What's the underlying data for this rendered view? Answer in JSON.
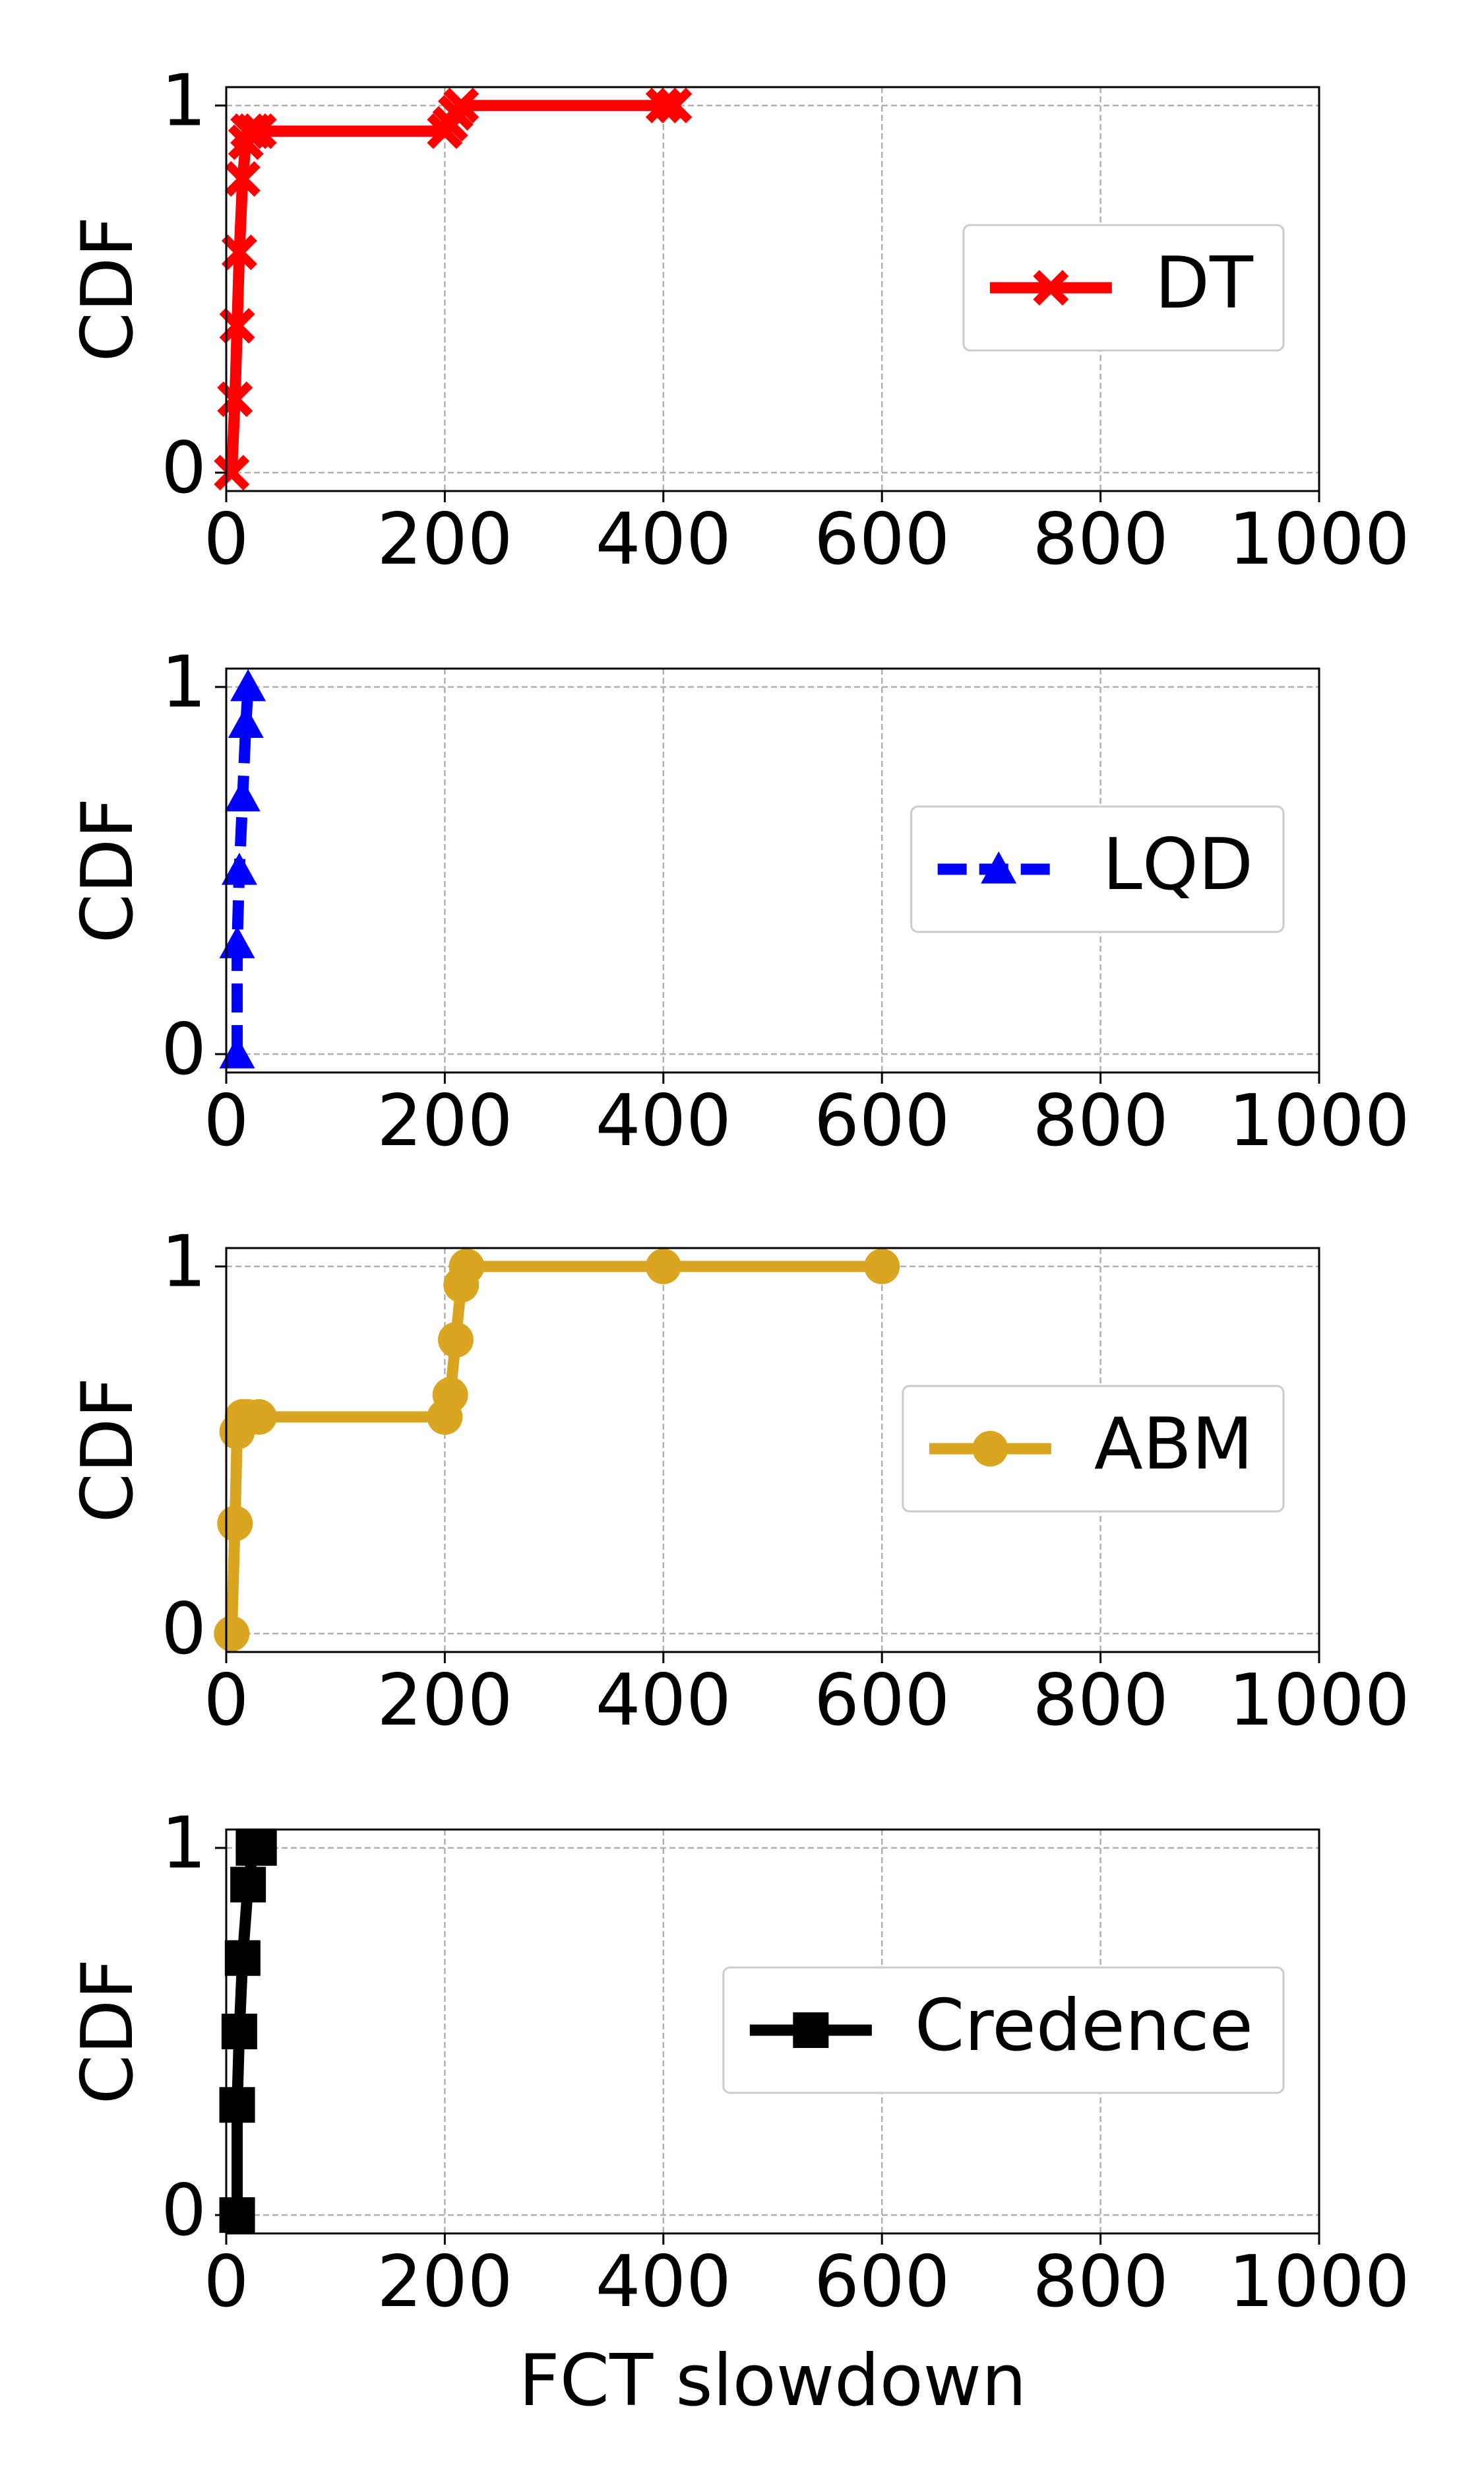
{
  "chart_data": [
    {
      "type": "line",
      "ylabel": "CDF",
      "x": [
        5,
        8,
        10,
        12,
        15,
        18,
        20,
        25,
        30,
        200,
        205,
        210,
        215,
        400,
        410
      ],
      "series": [
        {
          "name": "DT",
          "color": "#ff0000",
          "marker": "X",
          "linestyle": "solid",
          "values": [
            0,
            0.2,
            0.4,
            0.6,
            0.8,
            0.9,
            0.93,
            0.93,
            0.93,
            0.93,
            0.95,
            0.98,
            1,
            1,
            1
          ]
        }
      ],
      "xlim": [
        0,
        1000
      ],
      "ylim": [
        -0.05,
        1.05
      ],
      "xticks": [
        0,
        200,
        400,
        600,
        800,
        1000
      ],
      "yticks": [
        0,
        1
      ],
      "grid": true
    },
    {
      "type": "line",
      "ylabel": "CDF",
      "x": [
        10,
        10,
        12,
        15,
        18,
        20
      ],
      "series": [
        {
          "name": "LQD",
          "color": "#0000ff",
          "marker": "^",
          "linestyle": "dashed",
          "values": [
            0,
            0.3,
            0.5,
            0.7,
            0.9,
            1
          ]
        }
      ],
      "xlim": [
        0,
        1000
      ],
      "ylim": [
        -0.05,
        1.05
      ],
      "xticks": [
        0,
        200,
        400,
        600,
        800,
        1000
      ],
      "yticks": [
        0,
        1
      ],
      "grid": true
    },
    {
      "type": "line",
      "ylabel": "CDF",
      "x": [
        5,
        8,
        10,
        15,
        20,
        30,
        200,
        205,
        210,
        215,
        220,
        400,
        600
      ],
      "series": [
        {
          "name": "ABM",
          "color": "#daa520",
          "marker": "o",
          "linestyle": "solid",
          "values": [
            0,
            0.3,
            0.55,
            0.59,
            0.59,
            0.59,
            0.59,
            0.65,
            0.8,
            0.95,
            1,
            1,
            1
          ]
        }
      ],
      "xlim": [
        0,
        1000
      ],
      "ylim": [
        -0.05,
        1.05
      ],
      "xticks": [
        0,
        200,
        400,
        600,
        800,
        1000
      ],
      "yticks": [
        0,
        1
      ],
      "grid": true
    },
    {
      "type": "line",
      "ylabel": "CDF",
      "xlabel": "FCT slowdown",
      "x": [
        10,
        10,
        12,
        15,
        20,
        25,
        30
      ],
      "series": [
        {
          "name": "Credence",
          "color": "#000000",
          "marker": "s",
          "linestyle": "solid",
          "values": [
            0,
            0.3,
            0.5,
            0.7,
            0.9,
            1,
            1
          ]
        }
      ],
      "xlim": [
        0,
        1000
      ],
      "ylim": [
        -0.05,
        1.05
      ],
      "xticks": [
        0,
        200,
        400,
        600,
        800,
        1000
      ],
      "yticks": [
        0,
        1
      ],
      "grid": true
    }
  ]
}
